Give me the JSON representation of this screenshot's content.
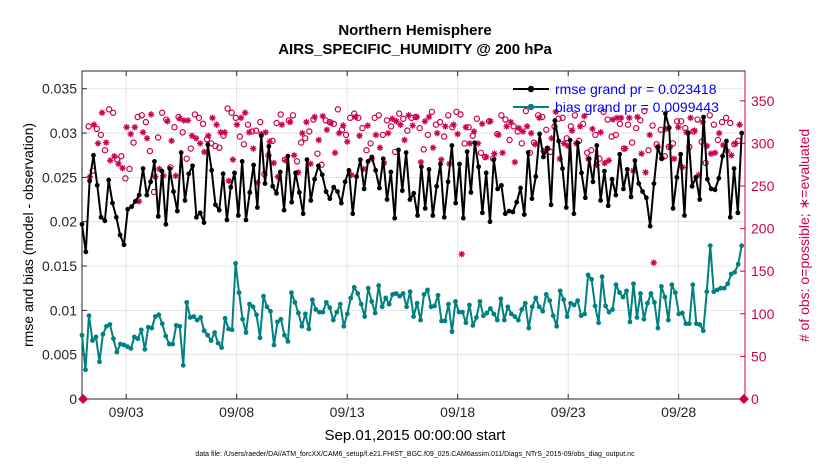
{
  "chart_data": {
    "type": "line",
    "title": "Northern Hemisphere",
    "subtitle": "AIRS_SPECIFIC_HUMIDITY @ 200 hPa",
    "xlabel": "Sep.01,2015 00:00:00 start",
    "ylabel": "rmse and bias (model - observation)",
    "ylabel_right": "# of obs: o=possible; ∗=evaluated",
    "footnote": "data file: /Users/raeder/DAI/ATM_forcXX/CAM6_setup/f.e21.FHIST_BGC.f09_025.CAM6assim.011/Diags_NTrS_2015-09/obs_diag_output.nc",
    "x_tick_labels": [
      "09/03",
      "09/08",
      "09/13",
      "09/18",
      "09/23",
      "09/28"
    ],
    "x_tick_values": [
      3,
      8,
      13,
      18,
      23,
      28
    ],
    "xlim": [
      1.0,
      31.0
    ],
    "ylim": [
      0,
      0.037
    ],
    "y_ticks": [
      0,
      0.005,
      0.01,
      0.015,
      0.02,
      0.025,
      0.03,
      0.035
    ],
    "y_tick_labels": [
      "0",
      "0.005",
      "0.01",
      "0.015",
      "0.02",
      "0.025",
      "0.03",
      "0.035"
    ],
    "ylim_right": [
      0,
      385
    ],
    "y_ticks_right": [
      0,
      50,
      100,
      150,
      200,
      250,
      300,
      350
    ],
    "y_tick_labels_right": [
      "0",
      "50",
      "100",
      "150",
      "200",
      "250",
      "300",
      "350"
    ],
    "legend_position": "top-right",
    "series": [
      {
        "name": "rmse grand pr = 0.023418",
        "color": "#000000",
        "axis": "left",
        "values": [
          0.0197,
          0.0166,
          0.0246,
          0.0275,
          0.0241,
          0.0205,
          0.0201,
          0.0247,
          0.0221,
          0.0205,
          0.0185,
          0.0174,
          0.0214,
          0.0217,
          0.0223,
          0.023,
          0.026,
          0.023,
          0.0245,
          0.0268,
          0.0206,
          0.0257,
          0.0197,
          0.026,
          0.0234,
          0.0212,
          0.0278,
          0.0224,
          0.0254,
          0.0263,
          0.0205,
          0.021,
          0.0199,
          0.0287,
          0.0258,
          0.0219,
          0.0213,
          0.0254,
          0.0202,
          0.0239,
          0.0255,
          0.0207,
          0.0268,
          0.0202,
          0.0233,
          0.0264,
          0.0216,
          0.0297,
          0.0243,
          0.0285,
          0.024,
          0.0232,
          0.0256,
          0.0213,
          0.0274,
          0.0222,
          0.0255,
          0.0233,
          0.0209,
          0.027,
          0.0224,
          0.0248,
          0.0263,
          0.0253,
          0.0234,
          0.0226,
          0.0239,
          0.0234,
          0.0221,
          0.0245,
          0.0258,
          0.0209,
          0.0251,
          0.027,
          0.0237,
          0.0268,
          0.0273,
          0.0258,
          0.0238,
          0.0271,
          0.0225,
          0.0256,
          0.0204,
          0.0281,
          0.0235,
          0.0278,
          0.0225,
          0.0232,
          0.0207,
          0.0262,
          0.0215,
          0.0259,
          0.0207,
          0.024,
          0.0265,
          0.0205,
          0.0245,
          0.0286,
          0.0221,
          0.0265,
          0.0204,
          0.0279,
          0.0233,
          0.0289,
          0.0262,
          0.021,
          0.0255,
          0.02,
          0.027,
          0.0237,
          0.0241,
          0.0209,
          0.0212,
          0.0211,
          0.0222,
          0.0238,
          0.0208,
          0.0278,
          0.0226,
          0.0251,
          0.0299,
          0.0273,
          0.0283,
          0.0219,
          0.0314,
          0.0291,
          0.026,
          0.0216,
          0.0292,
          0.0209,
          0.0289,
          0.0255,
          0.0227,
          0.0271,
          0.0245,
          0.0286,
          0.0224,
          0.0257,
          0.0218,
          0.0248,
          0.023,
          0.0276,
          0.0237,
          0.0259,
          0.0228,
          0.0269,
          0.0243,
          0.0234,
          0.0227,
          0.0195,
          0.0243,
          0.0284,
          0.0271,
          0.0322,
          0.0306,
          0.0215,
          0.025,
          0.0276,
          0.0207,
          0.03,
          0.024,
          0.025,
          0.0225,
          0.0318,
          0.0248,
          0.0237,
          0.0236,
          0.0249,
          0.0274,
          0.0291,
          0.0205,
          0.026,
          0.021,
          0.03
        ]
      },
      {
        "name": "bias grand pr = 0.0099443",
        "color": "#008080",
        "axis": "left",
        "values": [
          0.0072,
          0.0033,
          0.0094,
          0.0066,
          0.007,
          0.0042,
          0.0073,
          0.0082,
          0.0084,
          0.0068,
          0.0053,
          0.0062,
          0.0061,
          0.0059,
          0.0057,
          0.007,
          0.0068,
          0.0078,
          0.0056,
          0.0081,
          0.008,
          0.0093,
          0.0095,
          0.0085,
          0.0071,
          0.0062,
          0.0062,
          0.0083,
          0.0082,
          0.0038,
          0.0109,
          0.0092,
          0.0093,
          0.0089,
          0.0092,
          0.0077,
          0.0072,
          0.0066,
          0.0075,
          0.0063,
          0.0058,
          0.0091,
          0.0079,
          0.0078,
          0.0153,
          0.012,
          0.009,
          0.0075,
          0.0107,
          0.0104,
          0.0095,
          0.0069,
          0.0116,
          0.0104,
          0.0099,
          0.0061,
          0.0087,
          0.009,
          0.0072,
          0.0065,
          0.012,
          0.0109,
          0.0097,
          0.0082,
          0.0096,
          0.0079,
          0.0112,
          0.0101,
          0.0098,
          0.0098,
          0.0109,
          0.0103,
          0.0089,
          0.0098,
          0.0107,
          0.0082,
          0.0096,
          0.0114,
          0.0126,
          0.0119,
          0.0107,
          0.0093,
          0.0125,
          0.011,
          0.0097,
          0.0128,
          0.0104,
          0.0114,
          0.0107,
          0.0118,
          0.0119,
          0.0116,
          0.0119,
          0.0104,
          0.0121,
          0.0093,
          0.0108,
          0.0089,
          0.0118,
          0.0123,
          0.0104,
          0.0105,
          0.0117,
          0.0088,
          0.0088,
          0.0107,
          0.0076,
          0.011,
          0.0098,
          0.0098,
          0.0086,
          0.0106,
          0.0083,
          0.0092,
          0.011,
          0.0094,
          0.0097,
          0.0102,
          0.0096,
          0.0089,
          0.0113,
          0.0089,
          0.0104,
          0.0096,
          0.0093,
          0.0089,
          0.0101,
          0.0108,
          0.008,
          0.0104,
          0.0114,
          0.0104,
          0.0099,
          0.0118,
          0.0111,
          0.0094,
          0.0082,
          0.0122,
          0.0112,
          0.0093,
          0.0108,
          0.0106,
          0.0111,
          0.0094,
          0.0096,
          0.014,
          0.0135,
          0.0105,
          0.0086,
          0.0138,
          0.0105,
          0.0098,
          0.0101,
          0.0129,
          0.012,
          0.0115,
          0.0122,
          0.0087,
          0.013,
          0.0092,
          0.0119,
          0.009,
          0.0108,
          0.0119,
          0.0109,
          0.008,
          0.0127,
          0.0115,
          0.0089,
          0.0129,
          0.012,
          0.0096,
          0.0097,
          0.0085,
          0.0085,
          0.0129,
          0.0085,
          0.0084,
          0.0077,
          0.0121,
          0.0173,
          0.0121,
          0.0123,
          0.0125,
          0.0125,
          0.013,
          0.0141,
          0.0143,
          0.0152,
          0.0173
        ]
      }
    ],
    "obs_counts": {
      "possible_marker": "o",
      "evaluated_marker": "*",
      "color": "#cc0050",
      "axis": "right",
      "possible": [
        320,
        268,
        317,
        310,
        292,
        340,
        336,
        281,
        285,
        259,
        270,
        301,
        331,
        333,
        325,
        291,
        243,
        307,
        336,
        328,
        272,
        319,
        331,
        313,
        282,
        294,
        334,
        330,
        323,
        305,
        300,
        297,
        295,
        309,
        341,
        336,
        330,
        308,
        299,
        322,
        314,
        315,
        325,
        264,
        286,
        303,
        324,
        334,
        281,
        327,
        333,
        279,
        301,
        306,
        314,
        328,
        288,
        275,
        327,
        325,
        323,
        340,
        316,
        310,
        330,
        335,
        330,
        318,
        292,
        300,
        330,
        333,
        310,
        327,
        320,
        290,
        335,
        329,
        315,
        330,
        331,
        318,
        293,
        310,
        337,
        322,
        325,
        308,
        333,
        319,
        337,
        334,
        300,
        319,
        309,
        329,
        289,
        284,
        326,
        282,
        311,
        333,
        328,
        304,
        320,
        314,
        300,
        338,
        289,
        301,
        333,
        331,
        316,
        290,
        320,
        329,
        330,
        306,
        320,
        333,
        303,
        323,
        289,
        292,
        310,
        282,
        337,
        328,
        308,
        310,
        323,
        294,
        322,
        301,
        318,
        327,
        338,
        292,
        321,
        299,
        316,
        285,
        296,
        300,
        326,
        326,
        318,
        296,
        314,
        328,
        302,
        277,
        333,
        322,
        304,
        325,
        330,
        324,
        299,
        303
      ],
      "evaluated": [
        261,
        322,
        300,
        336,
        301,
        280,
        285,
        276,
        271,
        319,
        311,
        319,
        232,
        313,
        306,
        334,
        261,
        270,
        262,
        326,
        303,
        262,
        329,
        327,
        327,
        309,
        306,
        300,
        290,
        309,
        330,
        322,
        313,
        313,
        256,
        281,
        322,
        330,
        336,
        313,
        294,
        254,
        311,
        313,
        302,
        277,
        261,
        322,
        280,
        325,
        286,
        266,
        312,
        325,
        276,
        331,
        304,
        332,
        316,
        324,
        289,
        312,
        321,
        302,
        263,
        331,
        309,
        270,
        321,
        282,
        310,
        295,
        277,
        312,
        329,
        326,
        322,
        304,
        333,
        321,
        331,
        278,
        326,
        331,
        295,
        312,
        281,
        320,
        276,
        322,
        311,
        170,
        319,
        300,
        314,
        300,
        323,
        284,
        326,
        288,
        310,
        289,
        320,
        325,
        278,
        318,
        314,
        320,
        312,
        299,
        330,
        291,
        294,
        306,
        337,
        282,
        300,
        297,
        315,
        300,
        320,
        332,
        282,
        317,
        275,
        313,
        277,
        280,
        328,
        330,
        330,
        294,
        330,
        268,
        331,
        288,
        266,
        310,
        160,
        296,
        283,
        317,
        296,
        282,
        319,
        272,
        313,
        330,
        315,
        263,
        325,
        297,
        288,
        289,
        312,
        298,
        291,
        286,
        300,
        322
      ]
    }
  }
}
